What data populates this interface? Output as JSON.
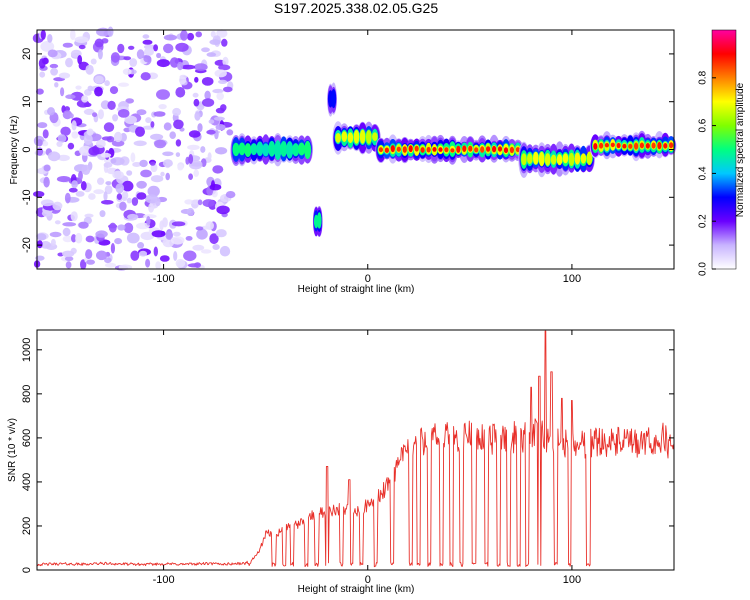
{
  "figure": {
    "title": "S197.2025.338.02.05.G25"
  },
  "chart_data": [
    {
      "type": "heatmap",
      "xlabel": "Height of straight line (km)",
      "ylabel": "Frequency (Hz)",
      "xlim": [
        -162,
        150
      ],
      "ylim": [
        -25,
        25
      ],
      "xticks": [
        -100,
        0,
        100
      ],
      "yticks": [
        -20,
        -10,
        0,
        10,
        20
      ],
      "xtick_labels": [
        "-100",
        "0",
        "100"
      ],
      "ytick_labels": [
        "-20",
        "-10",
        "0",
        "10",
        "20"
      ],
      "colorbar": {
        "label": "Normalized spectral amplitude",
        "range": [
          0,
          1
        ],
        "ticks": [
          0.0,
          0.2,
          0.4,
          0.6,
          0.8
        ],
        "tick_labels": [
          "0.0",
          "0.2",
          "0.4",
          "0.6",
          "0.8"
        ],
        "colors": [
          "#ffffff",
          "#c8b4ff",
          "#6a00ff",
          "#0000ff",
          "#00c8ff",
          "#00ff80",
          "#80ff00",
          "#ffff00",
          "#ff8000",
          "#ff0000",
          "#ff00a0"
        ]
      },
      "noise_region": {
        "x_range": [
          -162,
          -67
        ],
        "f_range": [
          -25,
          25
        ],
        "amplitude_range": [
          0.0,
          0.2
        ]
      },
      "features": [
        {
          "x_range": [
            -66,
            -28
          ],
          "f_center": 0,
          "f_width": 2,
          "peak": 0.55
        },
        {
          "x_range": [
            -26,
            -23
          ],
          "f_center": -15,
          "f_width": 2,
          "peak": 0.45
        },
        {
          "x_range": [
            -19,
            -16
          ],
          "f_center": 10.5,
          "f_width": 2,
          "peak": 0.4
        },
        {
          "x_range": [
            -16,
            5
          ],
          "f_center": 2.5,
          "f_width": 2,
          "peak": 0.7
        },
        {
          "x_range": [
            5,
            75
          ],
          "f_center": 0,
          "f_width": 1.6,
          "peak": 0.95
        },
        {
          "x_range": [
            75,
            110
          ],
          "f_center": -2,
          "f_width": 2,
          "peak": 0.8
        },
        {
          "x_range": [
            110,
            150
          ],
          "f_center": 0.8,
          "f_width": 1.6,
          "peak": 0.9
        }
      ]
    },
    {
      "type": "line",
      "xlabel": "Height of straight line (km)",
      "ylabel": "SNR (10 * v/v)",
      "xlim": [
        -162,
        150
      ],
      "ylim": [
        0,
        1090
      ],
      "xticks": [
        -100,
        0,
        100
      ],
      "yticks": [
        0,
        200,
        400,
        600,
        800,
        1000
      ],
      "xtick_labels": [
        "-100",
        "0",
        "100"
      ],
      "ytick_labels": [
        "0",
        "200",
        "400",
        "600",
        "800",
        "1000"
      ],
      "color": "#e8302a",
      "series": [
        {
          "name": "SNR",
          "x": [
            -162,
            -150,
            -140,
            -130,
            -120,
            -110,
            -100,
            -90,
            -80,
            -70,
            -60,
            -55,
            -52,
            -50,
            -45,
            -40,
            -35,
            -30,
            -25,
            -20,
            -15,
            -10,
            -5,
            0,
            5,
            10,
            15,
            18,
            20,
            25,
            30,
            35,
            40,
            45,
            50,
            55,
            60,
            65,
            70,
            75,
            80,
            85,
            90,
            95,
            100,
            105,
            110,
            115,
            120,
            125,
            130,
            135,
            140,
            145,
            150
          ],
          "y": [
            25,
            28,
            26,
            30,
            27,
            25,
            28,
            26,
            29,
            27,
            30,
            60,
            110,
            160,
            170,
            185,
            200,
            230,
            250,
            270,
            280,
            270,
            265,
            290,
            330,
            380,
            480,
            530,
            560,
            580,
            600,
            595,
            605,
            600,
            610,
            605,
            590,
            600,
            610,
            590,
            620,
            610,
            600,
            580,
            570,
            575,
            580,
            590,
            575,
            585,
            570,
            575,
            580,
            600,
            540
          ]
        }
      ],
      "dips": [
        -58,
        -46,
        -41,
        -37,
        -30,
        -25,
        -20,
        -13,
        -8,
        -3,
        4,
        12,
        21,
        25,
        30,
        36,
        41,
        46,
        52,
        58,
        64,
        69,
        74,
        78,
        84,
        92,
        99,
        108
      ],
      "spikes": [
        {
          "x": -20,
          "y": 470
        },
        {
          "x": -9,
          "y": 410
        },
        {
          "x": 16,
          "y": 500
        },
        {
          "x": 80,
          "y": 830
        },
        {
          "x": 84,
          "y": 880
        },
        {
          "x": 87,
          "y": 1085
        },
        {
          "x": 90,
          "y": 900
        },
        {
          "x": 95,
          "y": 780
        },
        {
          "x": 100,
          "y": 770
        }
      ]
    }
  ]
}
